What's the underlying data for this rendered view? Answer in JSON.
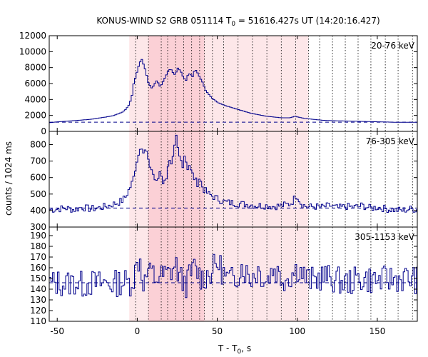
{
  "chart_data": {
    "type": "line",
    "title_main": "KONUS-WIND S2 GRB 051114 T",
    "title_sub": "0",
    "title_rest": " = 51616.427s UT (14:20:16.427)",
    "ylabel": "counts / 1024 ms",
    "xlabel_main": "T - T",
    "xlabel_sub": "0",
    "xlabel_rest": ", s",
    "xlim": [
      -55,
      175
    ],
    "xticks": [
      -50,
      0,
      50,
      100,
      150
    ],
    "shade_light": [
      -5,
      107
    ],
    "shade_dark": [
      7,
      42
    ],
    "dotted_lines": [
      -1,
      7,
      15,
      19,
      24,
      29,
      34,
      39,
      42,
      47,
      54,
      63,
      72,
      81,
      90,
      99,
      107,
      114,
      122,
      130,
      138,
      146,
      155,
      163,
      172
    ],
    "panels": [
      {
        "label": "20-76 keV",
        "ylim": [
          0,
          12000
        ],
        "yticks": [
          0,
          2000,
          4000,
          6000,
          8000,
          10000,
          12000
        ],
        "background": 1150,
        "x": [
          -55,
          -50,
          -40,
          -30,
          -20,
          -15,
          -10,
          -8,
          -6,
          -4,
          -3,
          -2,
          -1,
          0,
          1,
          2,
          3,
          4,
          5,
          6,
          7,
          8,
          9,
          10,
          11,
          12,
          13,
          14,
          15,
          16,
          17,
          18,
          19,
          20,
          21,
          22,
          23,
          24,
          25,
          26,
          27,
          28,
          29,
          30,
          31,
          32,
          33,
          34,
          35,
          36,
          37,
          38,
          39,
          40,
          41,
          42,
          44,
          46,
          48,
          50,
          55,
          60,
          65,
          70,
          75,
          80,
          85,
          90,
          95,
          98,
          100,
          102,
          105,
          110,
          115,
          120,
          130,
          140,
          150,
          160,
          170,
          175
        ],
        "values": [
          1100,
          1200,
          1350,
          1500,
          1800,
          2000,
          2400,
          2700,
          3200,
          4200,
          5800,
          6500,
          7200,
          8000,
          8500,
          9200,
          8700,
          8000,
          7600,
          6200,
          6000,
          5500,
          5400,
          5900,
          6100,
          6500,
          5800,
          5600,
          6000,
          6400,
          6800,
          7200,
          7600,
          7800,
          7700,
          7300,
          7100,
          7500,
          8000,
          7700,
          7400,
          6900,
          6600,
          6400,
          7000,
          7200,
          7100,
          6800,
          7500,
          7700,
          7400,
          7000,
          6600,
          6300,
          5800,
          5200,
          4700,
          4200,
          3900,
          3600,
          3200,
          2900,
          2600,
          2300,
          2100,
          1900,
          1800,
          1700,
          1700,
          1900,
          1800,
          1700,
          1600,
          1500,
          1400,
          1350,
          1300,
          1250,
          1200,
          1150,
          1150,
          1150
        ]
      },
      {
        "label": "76-305 keV",
        "ylim": [
          300,
          880
        ],
        "yticks": [
          300,
          400,
          500,
          600,
          700,
          800
        ],
        "background": 415,
        "x": [
          -55,
          -50,
          -45,
          -40,
          -35,
          -30,
          -25,
          -20,
          -15,
          -12,
          -10,
          -8,
          -6,
          -4,
          -3,
          -2,
          -1,
          0,
          1,
          2,
          3,
          4,
          5,
          6,
          7,
          8,
          9,
          10,
          11,
          12,
          13,
          14,
          15,
          16,
          17,
          18,
          19,
          20,
          21,
          22,
          23,
          24,
          25,
          26,
          27,
          28,
          29,
          30,
          31,
          32,
          33,
          34,
          35,
          36,
          37,
          38,
          39,
          40,
          41,
          42,
          44,
          46,
          48,
          50,
          52,
          55,
          60,
          65,
          70,
          75,
          80,
          85,
          90,
          95,
          97,
          98,
          99,
          100,
          101,
          102,
          104,
          106,
          110,
          115,
          120,
          125,
          130,
          135,
          140,
          145,
          150,
          155,
          160,
          165,
          170,
          175
        ],
        "values": [
          405,
          410,
          415,
          405,
          420,
          410,
          415,
          425,
          440,
          450,
          460,
          480,
          520,
          560,
          590,
          640,
          700,
          720,
          780,
          810,
          760,
          740,
          790,
          700,
          680,
          660,
          640,
          600,
          580,
          560,
          620,
          650,
          600,
          560,
          580,
          620,
          700,
          690,
          660,
          720,
          790,
          850,
          760,
          720,
          700,
          680,
          740,
          700,
          660,
          680,
          640,
          620,
          600,
          580,
          560,
          600,
          580,
          550,
          530,
          520,
          500,
          490,
          480,
          470,
          460,
          450,
          445,
          440,
          435,
          430,
          430,
          425,
          430,
          440,
          460,
          480,
          500,
          480,
          460,
          440,
          430,
          420,
          425,
          420,
          430,
          415,
          425,
          420,
          430,
          415,
          420,
          410,
          405,
          400,
          410,
          405
        ],
        "noise_seed": 7,
        "noise_amp": 22
      },
      {
        "label": "305-1153 keV",
        "ylim": [
          110,
          198
        ],
        "yticks": [
          110,
          120,
          130,
          140,
          150,
          160,
          170,
          180,
          190
        ],
        "background": 146,
        "x": [
          -55,
          -50,
          -45,
          -40,
          -35,
          -30,
          -25,
          -20,
          -15,
          -10,
          -5,
          -3,
          -1,
          0,
          1,
          2,
          3,
          4,
          5,
          6,
          7,
          8,
          9,
          10,
          15,
          20,
          22,
          24,
          26,
          28,
          30,
          35,
          40,
          45,
          50,
          55,
          60,
          65,
          70,
          75,
          80,
          85,
          90,
          95,
          100,
          105,
          110,
          115,
          120,
          130,
          140,
          150,
          160,
          170,
          175
        ],
        "values": [
          145,
          146,
          145,
          147,
          144,
          146,
          145,
          146,
          145,
          147,
          146,
          150,
          160,
          165,
          172,
          158,
          150,
          145,
          148,
          160,
          155,
          152,
          158,
          150,
          152,
          155,
          160,
          162,
          150,
          148,
          145,
          160,
          150,
          155,
          165,
          150,
          148,
          162,
          150,
          158,
          148,
          160,
          150,
          152,
          160,
          150,
          148,
          152,
          150,
          146,
          150,
          148,
          150,
          150,
          148
        ],
        "noise_seed": 13,
        "noise_amp": 13
      }
    ]
  }
}
